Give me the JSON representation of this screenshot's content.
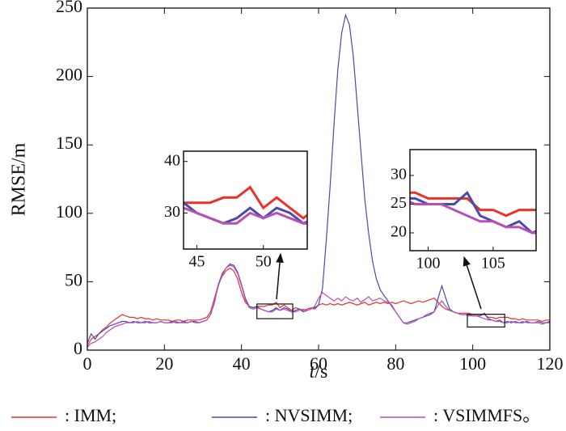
{
  "chart_data": {
    "type": "line",
    "xlabel": "t/s",
    "ylabel": "RMSE/m",
    "xlim": [
      0,
      120
    ],
    "ylim": [
      0,
      250
    ],
    "xticks": [
      0,
      20,
      40,
      60,
      80,
      100,
      120
    ],
    "yticks": [
      0,
      50,
      100,
      150,
      200,
      250
    ],
    "x": [
      0,
      1,
      2,
      3,
      4,
      5,
      6,
      7,
      8,
      9,
      10,
      11,
      12,
      13,
      14,
      15,
      16,
      17,
      18,
      19,
      20,
      21,
      22,
      23,
      24,
      25,
      26,
      27,
      28,
      29,
      30,
      31,
      32,
      33,
      34,
      35,
      36,
      37,
      38,
      39,
      40,
      41,
      42,
      43,
      44,
      45,
      46,
      47,
      48,
      49,
      50,
      51,
      52,
      53,
      54,
      55,
      56,
      57,
      58,
      59,
      60,
      61,
      62,
      63,
      64,
      65,
      66,
      67,
      68,
      69,
      70,
      71,
      72,
      73,
      74,
      75,
      76,
      77,
      78,
      79,
      80,
      81,
      82,
      83,
      84,
      85,
      86,
      87,
      88,
      89,
      90,
      91,
      92,
      93,
      94,
      95,
      96,
      97,
      98,
      99,
      100,
      101,
      102,
      103,
      104,
      105,
      106,
      107,
      108,
      109,
      110,
      111,
      112,
      113,
      114,
      115,
      116,
      117,
      118,
      119,
      120
    ],
    "series": [
      {
        "name": ": IMM;",
        "color": "#e8322a",
        "values": [
          3,
          8,
          10,
          12,
          15,
          17,
          20,
          22,
          24,
          26,
          25,
          24,
          24,
          23,
          24,
          23,
          23,
          22,
          23,
          22,
          22,
          22,
          21,
          22,
          22,
          21,
          22,
          22,
          22,
          22,
          23,
          24,
          28,
          38,
          48,
          54,
          58,
          60,
          58,
          52,
          42,
          35,
          32,
          31,
          32,
          32,
          32,
          33,
          33,
          35,
          31,
          33,
          31,
          29,
          31,
          30,
          29,
          30,
          31,
          30,
          33,
          34,
          33,
          34,
          33,
          34,
          33,
          34,
          35,
          34,
          33,
          34,
          35,
          33,
          34,
          35,
          34,
          35,
          34,
          35,
          34,
          35,
          36,
          35,
          34,
          35,
          36,
          35,
          36,
          37,
          38,
          35,
          32,
          30,
          29,
          28,
          27,
          27,
          27,
          27,
          26,
          26,
          26,
          26,
          24,
          24,
          23,
          24,
          24,
          24,
          23,
          23,
          22,
          23,
          22,
          22,
          22,
          22,
          21,
          22,
          22
        ]
      },
      {
        "name": ": NVSIMM;",
        "color": "#4a4aa8",
        "values": [
          5,
          12,
          8,
          12,
          14,
          16,
          18,
          19,
          20,
          21,
          21,
          20,
          21,
          20,
          20,
          21,
          20,
          20,
          20,
          21,
          20,
          20,
          21,
          20,
          20,
          21,
          20,
          21,
          21,
          20,
          21,
          22,
          26,
          35,
          48,
          56,
          60,
          63,
          62,
          57,
          48,
          38,
          32,
          31,
          32,
          30,
          29,
          28,
          29,
          31,
          29,
          31,
          30,
          28,
          29,
          30,
          28,
          29,
          30,
          31,
          33,
          45,
          80,
          120,
          165,
          205,
          232,
          245,
          238,
          215,
          180,
          145,
          110,
          85,
          65,
          52,
          44,
          40,
          36,
          32,
          28,
          24,
          20,
          20,
          21,
          22,
          23,
          24,
          25,
          26,
          28,
          38,
          47,
          38,
          30,
          28,
          27,
          26,
          26,
          26,
          25,
          25,
          25,
          27,
          23,
          22,
          21,
          22,
          20,
          21,
          20,
          21,
          20,
          20,
          21,
          20,
          20,
          21,
          20,
          20,
          21
        ]
      },
      {
        "name": ": VSIMMFS。",
        "color": "#b84fb8",
        "values": [
          2,
          5,
          6,
          8,
          10,
          13,
          15,
          17,
          18,
          19,
          20,
          20,
          20,
          21,
          20,
          20,
          21,
          20,
          20,
          21,
          20,
          20,
          20,
          21,
          20,
          20,
          20,
          21,
          20,
          20,
          21,
          22,
          26,
          36,
          47,
          55,
          60,
          62,
          61,
          56,
          47,
          37,
          31,
          30,
          31,
          30,
          29,
          28,
          28,
          30,
          29,
          30,
          29,
          28,
          28,
          29,
          30,
          29,
          30,
          32,
          38,
          42,
          40,
          38,
          36,
          38,
          36,
          39,
          37,
          36,
          38,
          35,
          37,
          39,
          36,
          37,
          38,
          36,
          35,
          33,
          28,
          24,
          20,
          19,
          20,
          21,
          23,
          24,
          26,
          27,
          28,
          33,
          36,
          32,
          29,
          28,
          27,
          26,
          26,
          25,
          25,
          25,
          24,
          23,
          22,
          22,
          21,
          21,
          20,
          20,
          21,
          20,
          20,
          21,
          20,
          20,
          20,
          20,
          19,
          20,
          20
        ]
      }
    ],
    "insets": [
      {
        "xlim": [
          44,
          53.3
        ],
        "ylim": [
          23,
          42
        ],
        "xticks": [
          45,
          50
        ],
        "yticks": [
          30,
          40
        ]
      },
      {
        "xlim": [
          98.6,
          108.3
        ],
        "ylim": [
          16.9,
          34.5
        ],
        "xticks": [
          100,
          105
        ],
        "yticks": [
          20,
          25,
          30
        ]
      }
    ]
  }
}
